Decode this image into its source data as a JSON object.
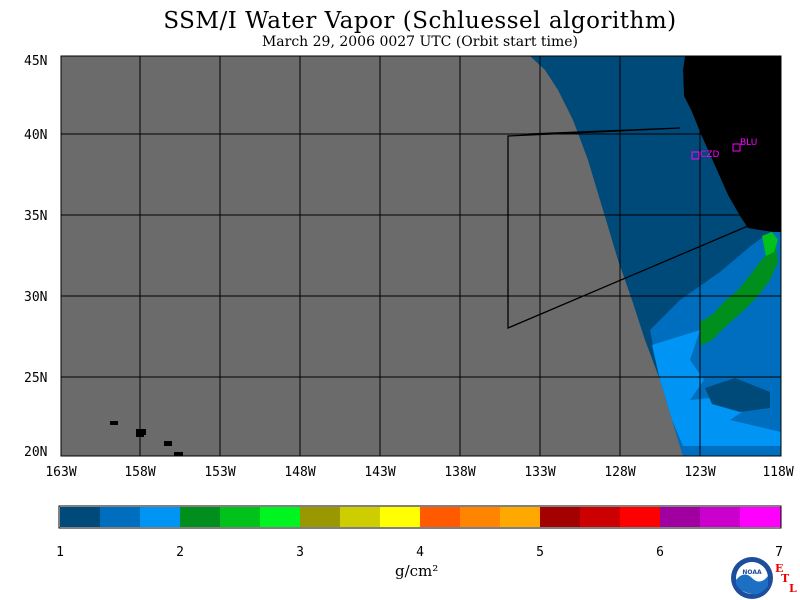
{
  "title": "SSM/I Water Vapor (Schluessel algorithm)",
  "subtitle": "March 29, 2006  0027 UTC  (Orbit start time)",
  "map": {
    "lat_labels": [
      "45N",
      "40N",
      "35N",
      "30N",
      "25N",
      "20N"
    ],
    "lon_labels": [
      "163W",
      "158W",
      "153W",
      "148W",
      "143W",
      "138W",
      "133W",
      "128W",
      "123W",
      "118W"
    ],
    "stations": [
      {
        "id": "CZD"
      },
      {
        "id": "BLU"
      }
    ],
    "colors": {
      "no_data": "#6b6b6b",
      "land": "#000000",
      "grid": "#000000",
      "station": "#ff00ff"
    }
  },
  "colorbar": {
    "ticks": [
      "1",
      "2",
      "3",
      "4",
      "5",
      "6",
      "7"
    ],
    "unit": "g/cm²",
    "colors": [
      "#004a7a",
      "#006ebe",
      "#0094f5",
      "#008f1c",
      "#00c21a",
      "#00f520",
      "#9a9800",
      "#cdcd00",
      "#ffff00",
      "#ff5a00",
      "#ff8400",
      "#ffa800",
      "#a30000",
      "#cc0000",
      "#ff0000",
      "#a000a0",
      "#cc00cc",
      "#ff00ff"
    ]
  },
  "logo": {
    "text": "NOAA",
    "letters": [
      "E",
      "T",
      "L"
    ]
  }
}
